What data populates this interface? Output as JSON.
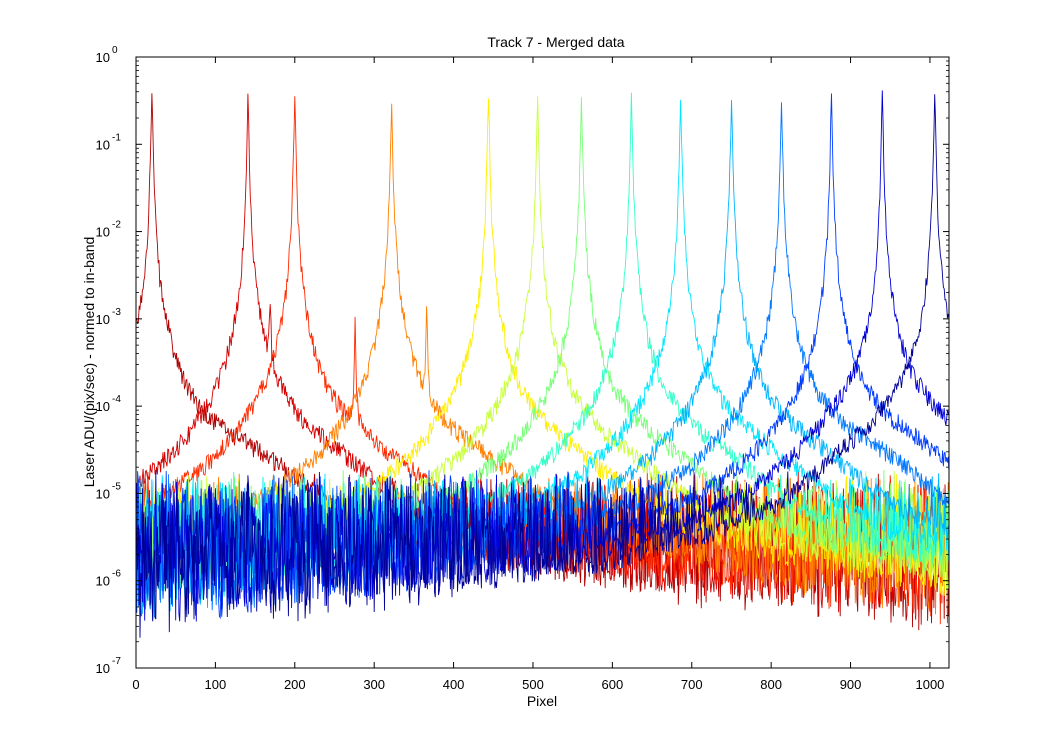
{
  "chart_data": {
    "type": "line",
    "title": "Track 7 - Merged data",
    "xlabel": "Pixel",
    "ylabel": "Laser ADU/(pix/sec) - normed to in-band",
    "xlim": [
      0,
      1024
    ],
    "ylim": [
      1e-07,
      1
    ],
    "yscale": "log",
    "grid": false,
    "legend": "none",
    "x_ticks": [
      "0",
      "100",
      "200",
      "300",
      "400",
      "500",
      "600",
      "700",
      "800",
      "900",
      "1000"
    ],
    "y_ticks": [
      {
        "base": "10",
        "exp": "-7"
      },
      {
        "base": "10",
        "exp": "-6"
      },
      {
        "base": "10",
        "exp": "-5"
      },
      {
        "base": "10",
        "exp": "-4"
      },
      {
        "base": "10",
        "exp": "-3"
      },
      {
        "base": "10",
        "exp": "-2"
      },
      {
        "base": "10",
        "exp": "-1"
      },
      {
        "base": "10",
        "exp": "0"
      }
    ],
    "series": [
      {
        "color": "#b00000",
        "peak_x": 20,
        "peak_y": 0.38,
        "ghost_x": 41,
        "ghost_y": 0.00035,
        "hump_x": 110,
        "hump_y": 1.4e-05
      },
      {
        "color": "#d40000",
        "peak_x": 141,
        "peak_y": 0.33,
        "ghost_x": 169,
        "ghost_y": 0.0014,
        "hump_x": 200,
        "hump_y": 1.2e-05
      },
      {
        "color": "#ff2a00",
        "peak_x": 200,
        "peak_y": 0.33,
        "ghost_x": 276,
        "ghost_y": 0.0009,
        "hump_x": 260,
        "hump_y": 1.3e-05
      },
      {
        "color": "#ff7f00",
        "peak_x": 322,
        "peak_y": 0.3,
        "ghost_x": 366,
        "ghost_y": 0.0014,
        "hump_x": 390,
        "hump_y": 1.2e-05
      },
      {
        "color": "#ffee00",
        "peak_x": 444,
        "peak_y": 0.33,
        "ghost_x": 441,
        "ghost_y": 0.0012,
        "hump_x": 500,
        "hump_y": 1.1e-05
      },
      {
        "color": "#c8ff3c",
        "peak_x": 506,
        "peak_y": 0.33,
        "ghost_x": 560,
        "ghost_y": 2e-05,
        "hump_x": 560,
        "hump_y": 1.2e-05
      },
      {
        "color": "#78ff78",
        "peak_x": 561,
        "peak_y": 0.33,
        "ghost_x": 0,
        "ghost_y": 0,
        "hump_x": 620,
        "hump_y": 1.4e-05
      },
      {
        "color": "#32ffc8",
        "peak_x": 624,
        "peak_y": 0.33,
        "ghost_x": 0,
        "ghost_y": 0,
        "hump_x": 680,
        "hump_y": 1.5e-05
      },
      {
        "color": "#00e6ff",
        "peak_x": 686,
        "peak_y": 0.33,
        "ghost_x": 0,
        "ghost_y": 0,
        "hump_x": 740,
        "hump_y": 1.6e-05
      },
      {
        "color": "#00b4ff",
        "peak_x": 750,
        "peak_y": 0.33,
        "ghost_x": 0,
        "ghost_y": 0,
        "hump_x": 800,
        "hump_y": 1.7e-05
      },
      {
        "color": "#0078ff",
        "peak_x": 813,
        "peak_y": 0.34,
        "ghost_x": 0,
        "ghost_y": 0,
        "hump_x": 880,
        "hump_y": 1.8e-05
      },
      {
        "color": "#003cff",
        "peak_x": 876,
        "peak_y": 0.34,
        "ghost_x": 0,
        "ghost_y": 0,
        "hump_x": 930,
        "hump_y": 2.2e-05
      },
      {
        "color": "#0000d8",
        "peak_x": 940,
        "peak_y": 0.35,
        "ghost_x": 0,
        "ghost_y": 0,
        "hump_x": 960,
        "hump_y": 4e-05
      },
      {
        "color": "#000096",
        "peak_x": 1006,
        "peak_y": 0.35,
        "ghost_x": 0,
        "ghost_y": 0,
        "hump_x": 990,
        "hump_y": 3e-05
      }
    ]
  }
}
